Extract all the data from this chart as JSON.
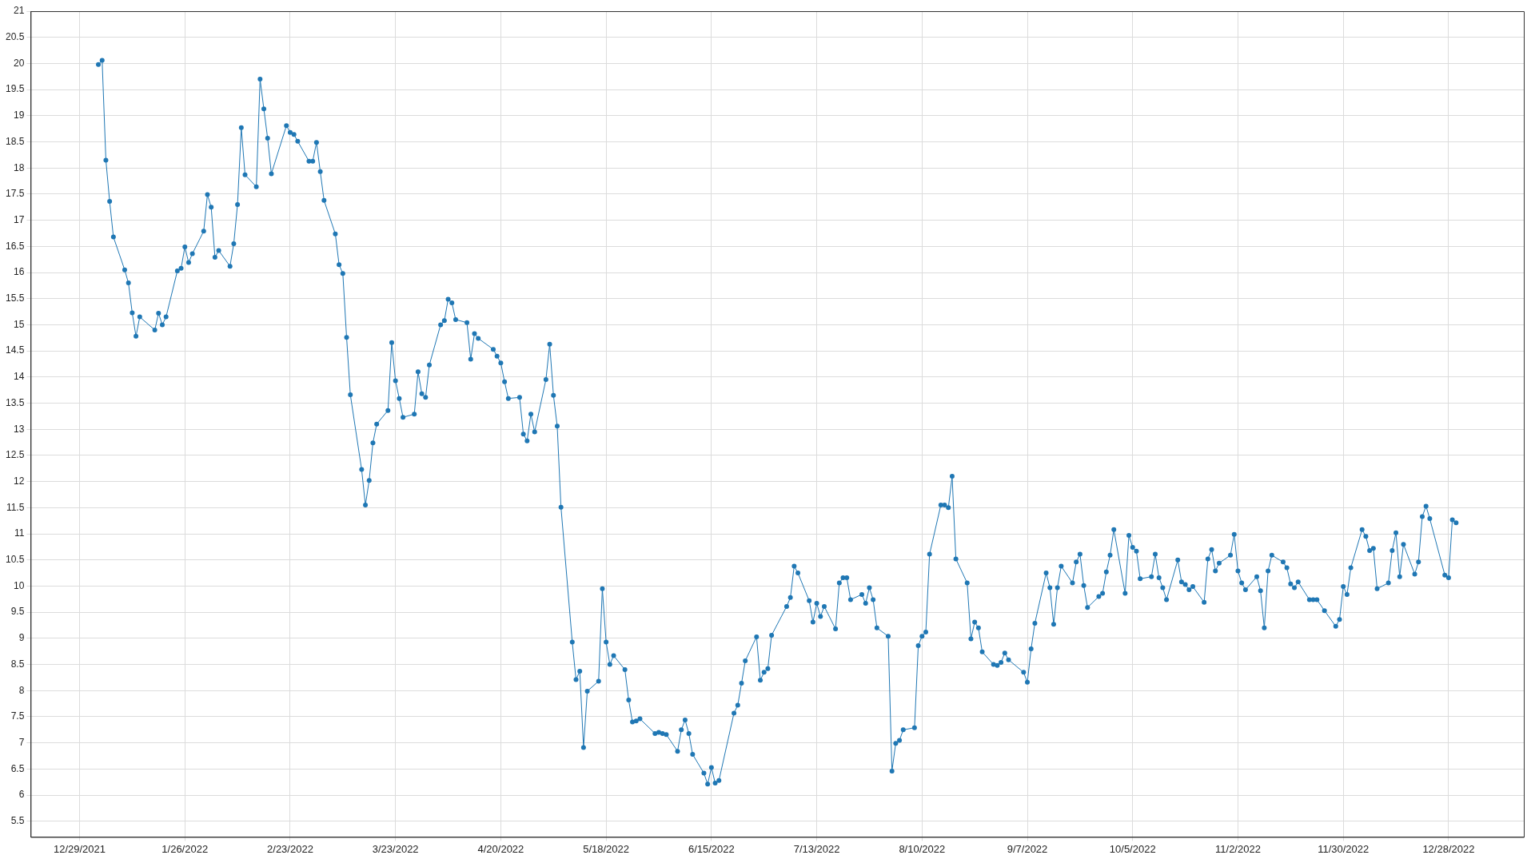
{
  "chart_data": {
    "type": "line",
    "marker": "circle",
    "line_style": "solid",
    "grid": true,
    "legend": false,
    "xlim": [
      "2021-12-16",
      "2023-01-17"
    ],
    "xticks": [
      {
        "value": "2021-12-29",
        "label": "12/29/2021"
      },
      {
        "value": "2022-01-26",
        "label": "1/26/2022"
      },
      {
        "value": "2022-02-23",
        "label": "2/23/2022"
      },
      {
        "value": "2022-03-23",
        "label": "3/23/2022"
      },
      {
        "value": "2022-04-20",
        "label": "4/20/2022"
      },
      {
        "value": "2022-05-18",
        "label": "5/18/2022"
      },
      {
        "value": "2022-06-15",
        "label": "6/15/2022"
      },
      {
        "value": "2022-07-13",
        "label": "7/13/2022"
      },
      {
        "value": "2022-08-10",
        "label": "8/10/2022"
      },
      {
        "value": "2022-09-07",
        "label": "9/7/2022"
      },
      {
        "value": "2022-10-05",
        "label": "10/5/2022"
      },
      {
        "value": "2022-11-02",
        "label": "11/2/2022"
      },
      {
        "value": "2022-11-30",
        "label": "11/30/2022"
      },
      {
        "value": "2022-12-28",
        "label": "12/28/2022"
      }
    ],
    "ylim": [
      5.2,
      21
    ],
    "yticks": [
      5.5,
      6,
      6.5,
      7,
      7.5,
      8,
      8.5,
      9,
      9.5,
      10,
      10.5,
      11,
      11.5,
      12,
      12.5,
      13,
      13.5,
      14,
      14.5,
      15,
      15.5,
      16,
      16.5,
      17,
      17.5,
      18,
      18.5,
      19,
      19.5,
      20,
      20.5,
      21
    ],
    "x": [
      "2022-01-03",
      "2022-01-04",
      "2022-01-05",
      "2022-01-06",
      "2022-01-07",
      "2022-01-10",
      "2022-01-11",
      "2022-01-12",
      "2022-01-13",
      "2022-01-14",
      "2022-01-18",
      "2022-01-19",
      "2022-01-20",
      "2022-01-21",
      "2022-01-24",
      "2022-01-25",
      "2022-01-26",
      "2022-01-27",
      "2022-01-28",
      "2022-01-31",
      "2022-02-01",
      "2022-02-02",
      "2022-02-03",
      "2022-02-04",
      "2022-02-07",
      "2022-02-08",
      "2022-02-09",
      "2022-02-10",
      "2022-02-11",
      "2022-02-14",
      "2022-02-15",
      "2022-02-16",
      "2022-02-17",
      "2022-02-18",
      "2022-02-22",
      "2022-02-23",
      "2022-02-24",
      "2022-02-25",
      "2022-02-28",
      "2022-03-01",
      "2022-03-02",
      "2022-03-03",
      "2022-03-04",
      "2022-03-07",
      "2022-03-08",
      "2022-03-09",
      "2022-03-10",
      "2022-03-11",
      "2022-03-14",
      "2022-03-15",
      "2022-03-16",
      "2022-03-17",
      "2022-03-18",
      "2022-03-21",
      "2022-03-22",
      "2022-03-23",
      "2022-03-24",
      "2022-03-25",
      "2022-03-28",
      "2022-03-29",
      "2022-03-30",
      "2022-03-31",
      "2022-04-01",
      "2022-04-04",
      "2022-04-05",
      "2022-04-06",
      "2022-04-07",
      "2022-04-08",
      "2022-04-11",
      "2022-04-12",
      "2022-04-13",
      "2022-04-14",
      "2022-04-18",
      "2022-04-19",
      "2022-04-20",
      "2022-04-21",
      "2022-04-22",
      "2022-04-25",
      "2022-04-26",
      "2022-04-27",
      "2022-04-28",
      "2022-04-29",
      "2022-05-02",
      "2022-05-03",
      "2022-05-04",
      "2022-05-05",
      "2022-05-06",
      "2022-05-09",
      "2022-05-10",
      "2022-05-11",
      "2022-05-12",
      "2022-05-13",
      "2022-05-16",
      "2022-05-17",
      "2022-05-18",
      "2022-05-19",
      "2022-05-20",
      "2022-05-23",
      "2022-05-24",
      "2022-05-25",
      "2022-05-26",
      "2022-05-27",
      "2022-05-31",
      "2022-06-01",
      "2022-06-02",
      "2022-06-03",
      "2022-06-06",
      "2022-06-07",
      "2022-06-08",
      "2022-06-09",
      "2022-06-10",
      "2022-06-13",
      "2022-06-14",
      "2022-06-15",
      "2022-06-16",
      "2022-06-17",
      "2022-06-21",
      "2022-06-22",
      "2022-06-23",
      "2022-06-24",
      "2022-06-27",
      "2022-06-28",
      "2022-06-29",
      "2022-06-30",
      "2022-07-01",
      "2022-07-05",
      "2022-07-06",
      "2022-07-07",
      "2022-07-08",
      "2022-07-11",
      "2022-07-12",
      "2022-07-13",
      "2022-07-14",
      "2022-07-15",
      "2022-07-18",
      "2022-07-19",
      "2022-07-20",
      "2022-07-21",
      "2022-07-22",
      "2022-07-25",
      "2022-07-26",
      "2022-07-27",
      "2022-07-28",
      "2022-07-29",
      "2022-08-01",
      "2022-08-02",
      "2022-08-03",
      "2022-08-04",
      "2022-08-05",
      "2022-08-08",
      "2022-08-09",
      "2022-08-10",
      "2022-08-11",
      "2022-08-12",
      "2022-08-15",
      "2022-08-16",
      "2022-08-17",
      "2022-08-18",
      "2022-08-19",
      "2022-08-22",
      "2022-08-23",
      "2022-08-24",
      "2022-08-25",
      "2022-08-26",
      "2022-08-29",
      "2022-08-30",
      "2022-08-31",
      "2022-09-01",
      "2022-09-02",
      "2022-09-06",
      "2022-09-07",
      "2022-09-08",
      "2022-09-09",
      "2022-09-12",
      "2022-09-13",
      "2022-09-14",
      "2022-09-15",
      "2022-09-16",
      "2022-09-19",
      "2022-09-20",
      "2022-09-21",
      "2022-09-22",
      "2022-09-23",
      "2022-09-26",
      "2022-09-27",
      "2022-09-28",
      "2022-09-29",
      "2022-09-30",
      "2022-10-03",
      "2022-10-04",
      "2022-10-05",
      "2022-10-06",
      "2022-10-07",
      "2022-10-10",
      "2022-10-11",
      "2022-10-12",
      "2022-10-13",
      "2022-10-14",
      "2022-10-17",
      "2022-10-18",
      "2022-10-19",
      "2022-10-20",
      "2022-10-21",
      "2022-10-24",
      "2022-10-25",
      "2022-10-26",
      "2022-10-27",
      "2022-10-28",
      "2022-10-31",
      "2022-11-01",
      "2022-11-02",
      "2022-11-03",
      "2022-11-04",
      "2022-11-07",
      "2022-11-08",
      "2022-11-09",
      "2022-11-10",
      "2022-11-11",
      "2022-11-14",
      "2022-11-15",
      "2022-11-16",
      "2022-11-17",
      "2022-11-18",
      "2022-11-21",
      "2022-11-22",
      "2022-11-23",
      "2022-11-25",
      "2022-11-28",
      "2022-11-29",
      "2022-11-30",
      "2022-12-01",
      "2022-12-02",
      "2022-12-05",
      "2022-12-06",
      "2022-12-07",
      "2022-12-08",
      "2022-12-09",
      "2022-12-12",
      "2022-12-13",
      "2022-12-14",
      "2022-12-15",
      "2022-12-16",
      "2022-12-19",
      "2022-12-20",
      "2022-12-21",
      "2022-12-22",
      "2022-12-23",
      "2022-12-27",
      "2022-12-28",
      "2022-12-29",
      "2022-12-30"
    ],
    "series": [
      {
        "color": "#1f77b4",
        "values": [
          19.98,
          20.06,
          18.15,
          17.36,
          16.68,
          16.05,
          15.8,
          15.23,
          14.78,
          15.15,
          14.9,
          15.22,
          15.0,
          15.15,
          16.03,
          16.08,
          16.49,
          16.19,
          16.36,
          16.79,
          17.49,
          17.25,
          16.29,
          16.42,
          16.12,
          16.55,
          17.3,
          18.77,
          17.87,
          17.64,
          19.7,
          19.13,
          18.57,
          17.89,
          18.81,
          18.68,
          18.64,
          18.51,
          18.13,
          18.13,
          18.49,
          17.93,
          17.38,
          16.74,
          16.15,
          15.98,
          14.76,
          13.66,
          12.23,
          11.55,
          12.02,
          12.74,
          13.1,
          13.36,
          14.66,
          13.93,
          13.59,
          13.23,
          13.29,
          14.1,
          13.68,
          13.61,
          14.23,
          15.0,
          15.08,
          15.49,
          15.42,
          15.1,
          15.04,
          14.34,
          14.83,
          14.74,
          14.53,
          14.4,
          14.27,
          13.91,
          13.59,
          13.61,
          12.91,
          12.78,
          13.29,
          12.95,
          13.95,
          14.63,
          13.65,
          13.06,
          11.51,
          8.93,
          8.21,
          8.37,
          6.91,
          7.99,
          8.18,
          9.95,
          8.93,
          8.5,
          8.67,
          8.4,
          7.82,
          7.4,
          7.42,
          7.46,
          7.18,
          7.2,
          7.18,
          7.16,
          6.84,
          7.25,
          7.44,
          7.18,
          6.78,
          6.42,
          6.21,
          6.53,
          6.23,
          6.28,
          7.57,
          7.72,
          8.14,
          8.57,
          9.03,
          8.2,
          8.35,
          8.42,
          9.06,
          9.61,
          9.78,
          10.38,
          10.25,
          9.72,
          9.31,
          9.67,
          9.42,
          9.61,
          9.18,
          10.06,
          10.16,
          10.16,
          9.74,
          9.84,
          9.67,
          9.97,
          9.74,
          9.2,
          9.04,
          6.46,
          6.99,
          7.05,
          7.25,
          7.29,
          8.86,
          9.04,
          9.12,
          10.61,
          11.55,
          11.55,
          11.5,
          12.1,
          10.52,
          10.06,
          8.99,
          9.31,
          9.2,
          8.74,
          8.5,
          8.48,
          8.54,
          8.72,
          8.59,
          8.35,
          8.16,
          8.8,
          9.29,
          10.25,
          9.97,
          9.27,
          9.97,
          10.38,
          10.06,
          10.46,
          10.61,
          10.01,
          9.59,
          9.8,
          9.86,
          10.27,
          10.59,
          11.08,
          9.86,
          10.97,
          10.74,
          10.67,
          10.14,
          10.18,
          10.61,
          10.16,
          9.97,
          9.74,
          10.5,
          10.08,
          10.03,
          9.93,
          9.99,
          9.69,
          10.52,
          10.7,
          10.29,
          10.44,
          10.59,
          10.99,
          10.29,
          10.06,
          9.93,
          10.18,
          9.91,
          9.2,
          10.29,
          10.59,
          10.46,
          10.35,
          10.04,
          9.97,
          10.08,
          9.74,
          9.74,
          9.74,
          9.53,
          9.23,
          9.36,
          9.99,
          9.84,
          10.35,
          11.08,
          10.95,
          10.68,
          10.72,
          9.95,
          10.06,
          10.68,
          11.02,
          10.18,
          10.8,
          10.23,
          10.46,
          11.33,
          11.53,
          11.29,
          10.21,
          10.16,
          11.27,
          11.21
        ]
      }
    ]
  }
}
